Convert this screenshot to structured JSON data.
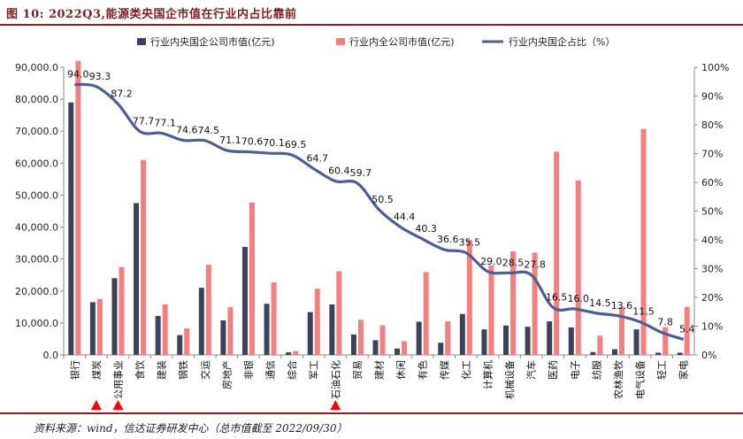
{
  "page": {
    "title": "图 10:  2022Q3,能源类央国企市值在行业内占比靠前",
    "source": "资料来源：wind，信达证券研发中心（总市值截至 2022/09/30）"
  },
  "colors": {
    "bar_central": "#3c4257",
    "bar_all": "#f47f7f",
    "line": "#4f5e92",
    "marker": "#ff0000",
    "title": "#7a1f1f",
    "rule": "#8c1b1b"
  },
  "chart_data": {
    "type": "bar",
    "legend_position": "top",
    "grid": false,
    "categories": [
      "银行",
      "煤炭",
      "公用事业",
      "食饮",
      "建装",
      "钢铁",
      "交运",
      "房地产",
      "非银",
      "通信",
      "综合",
      "军工",
      "石油石化",
      "贸易",
      "建材",
      "休闲",
      "有色",
      "传媒",
      "化工",
      "计算机",
      "机械设备",
      "汽车",
      "医药",
      "电子",
      "纺服",
      "农林渔牧",
      "电气设备",
      "轻工",
      "家电"
    ],
    "highlighted_categories": [
      "煤炭",
      "公用事业",
      "石油石化"
    ],
    "y_left": {
      "min": 0,
      "max": 90000,
      "step": 10000,
      "ticks": [
        "0.0",
        "10,000.0",
        "20,000.0",
        "30,000.0",
        "40,000.0",
        "50,000.0",
        "60,000.0",
        "70,000.0",
        "80,000.0",
        "90,000.0"
      ]
    },
    "y_right": {
      "min": 0,
      "max": 100,
      "step": 10,
      "ticks": [
        "0%",
        "10%",
        "20%",
        "30%",
        "40%",
        "50%",
        "60%",
        "70%",
        "80%",
        "90%",
        "100%"
      ]
    },
    "series": [
      {
        "name": "行业内央国企公司市值(亿元)",
        "type": "bar",
        "axis": "left",
        "values": [
          79000,
          16500,
          24000,
          47500,
          12200,
          6200,
          21000,
          10800,
          33800,
          16000,
          800,
          13400,
          15800,
          6400,
          4600,
          2000,
          10400,
          3800,
          12800,
          8000,
          9200,
          8800,
          10500,
          8600,
          900,
          1800,
          8000,
          700,
          700
        ]
      },
      {
        "name": "行业内全公司市值(亿元)",
        "type": "bar",
        "axis": "left",
        "values": [
          92000,
          17500,
          27500,
          61000,
          15800,
          8300,
          28200,
          15000,
          47700,
          22700,
          1200,
          20700,
          26200,
          11000,
          9300,
          4300,
          25900,
          10500,
          36000,
          28000,
          32400,
          32000,
          63600,
          54600,
          6000,
          15000,
          70700,
          8700,
          15000
        ]
      },
      {
        "name": "行业内央国企占比（%）",
        "type": "line",
        "axis": "right",
        "values": [
          94.0,
          93.3,
          87.2,
          77.7,
          77.1,
          74.6,
          74.5,
          71.1,
          70.6,
          70.1,
          69.5,
          64.7,
          60.4,
          59.7,
          50.5,
          44.4,
          40.3,
          36.6,
          35.5,
          29.0,
          28.5,
          27.8,
          16.5,
          16.0,
          14.5,
          13.6,
          11.5,
          7.8,
          5.4
        ],
        "labels": [
          "94.0",
          "93.3",
          "87.2",
          "77.7",
          "77.1",
          "74.6",
          "74.5",
          "71.1",
          "70.6",
          "70.1",
          "69.5",
          "64.7",
          "60.4",
          "59.7",
          "50.5",
          "44.4",
          "40.3",
          "36.6",
          "35.5",
          "29.0",
          "28.5",
          "27.8",
          "16.5",
          "16.0",
          "14.5",
          "13.6",
          "11.5",
          "7.8",
          "5.4"
        ]
      }
    ]
  }
}
